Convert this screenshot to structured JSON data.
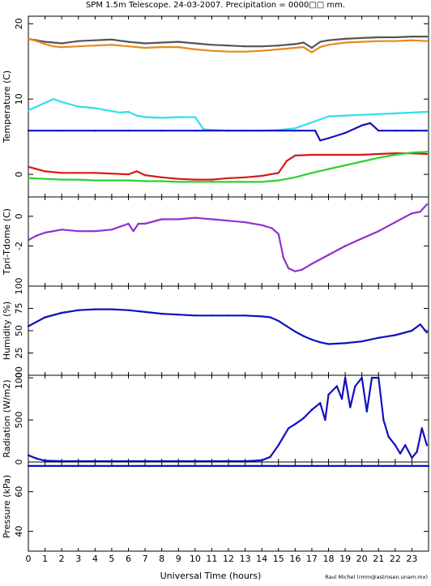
{
  "title": "SPM 1.5m Telescope. 24-03-2007. Precipitation = 0000□□ mm.",
  "xlabel": "Universal Time (hours)",
  "credit": "Raul Michel (rmm@astrosen.unam.mx)",
  "x_ticks": [
    "0",
    "1",
    "2",
    "3",
    "4",
    "5",
    "6",
    "7",
    "8",
    "9",
    "10",
    "11",
    "12",
    "13",
    "14",
    "15",
    "16",
    "17",
    "18",
    "19",
    "20",
    "21",
    "22",
    "23"
  ],
  "panels": [
    {
      "ylabel": "Temperature (C)",
      "ticks": [
        "0",
        "10",
        "20"
      ]
    },
    {
      "ylabel": "Tpri-Tdome (C)",
      "ticks": [
        "-2",
        "0"
      ]
    },
    {
      "ylabel": "Humidity (%)",
      "ticks": [
        "0",
        "25",
        "50",
        "75",
        "100"
      ]
    },
    {
      "ylabel": "Radiation (W/m2)",
      "ticks": [
        "0",
        "500",
        "1000"
      ]
    },
    {
      "ylabel": "Pressure (kPa)",
      "ticks": [
        "40",
        "60"
      ]
    }
  ],
  "colors": {
    "dark_gray": "#555555",
    "orange": "#e88a1a",
    "cyan": "#30e0e8",
    "blue": "#1010c0",
    "red": "#d81818",
    "green": "#30d030",
    "purple": "#9030d0"
  },
  "chart_data": [
    {
      "type": "line",
      "title": "",
      "xlabel": "Universal Time (hours)",
      "ylabel": "Temperature (C)",
      "xlim": [
        0,
        24
      ],
      "ylim": [
        -3,
        21
      ],
      "grid": false,
      "series": [
        {
          "color": "#555555",
          "x": [
            0,
            0.5,
            1,
            1.5,
            2,
            3,
            4,
            5,
            6,
            7,
            8,
            9,
            10,
            11,
            12,
            13,
            14,
            15,
            16,
            16.5,
            17,
            17.5,
            18,
            19,
            20,
            21,
            22,
            23,
            23.9
          ],
          "y": [
            18,
            17.8,
            17.6,
            17.5,
            17.4,
            17.7,
            17.8,
            17.9,
            17.6,
            17.4,
            17.5,
            17.6,
            17.4,
            17.2,
            17.1,
            17.0,
            17.0,
            17.1,
            17.3,
            17.5,
            16.8,
            17.6,
            17.8,
            18.0,
            18.1,
            18.2,
            18.2,
            18.3,
            18.3
          ]
        },
        {
          "color": "#e88a1a",
          "x": [
            0,
            0.5,
            1,
            1.5,
            2,
            3,
            4,
            5,
            6,
            7,
            8,
            9,
            10,
            11,
            12,
            13,
            14,
            15,
            16,
            16.5,
            17,
            17.5,
            18,
            19,
            20,
            21,
            22,
            23,
            23.9
          ],
          "y": [
            18,
            17.7,
            17.3,
            17.0,
            16.9,
            17.0,
            17.1,
            17.2,
            17.0,
            16.8,
            16.9,
            16.9,
            16.6,
            16.4,
            16.3,
            16.3,
            16.4,
            16.6,
            16.8,
            16.9,
            16.2,
            16.9,
            17.2,
            17.5,
            17.6,
            17.7,
            17.7,
            17.8,
            17.7
          ]
        },
        {
          "color": "#30e0e8",
          "x": [
            0,
            0.5,
            1,
            1.5,
            2,
            3,
            4,
            5,
            5.5,
            6,
            6.5,
            7,
            8,
            9,
            10,
            10.5,
            11,
            12,
            13,
            14,
            15,
            16,
            17,
            18,
            19,
            20,
            21,
            22,
            23,
            23.9
          ],
          "y": [
            8.5,
            9,
            9.5,
            10,
            9.6,
            9,
            8.8,
            8.4,
            8.2,
            8.3,
            7.8,
            7.6,
            7.5,
            7.6,
            7.6,
            6.0,
            5.9,
            5.8,
            5.8,
            5.8,
            5.9,
            6.1,
            6.9,
            7.7,
            7.8,
            7.9,
            8.0,
            8.1,
            8.2,
            8.3
          ]
        },
        {
          "color": "#1010c0",
          "x": [
            0,
            2,
            4,
            6,
            8,
            10,
            12,
            14,
            16,
            17.2,
            17.5,
            18,
            19,
            20,
            20.5,
            21,
            22,
            23,
            23.9
          ],
          "y": [
            5.8,
            5.8,
            5.8,
            5.8,
            5.8,
            5.8,
            5.8,
            5.8,
            5.8,
            5.8,
            4.5,
            4.8,
            5.5,
            6.5,
            6.8,
            5.8,
            5.8,
            5.8,
            5.8
          ]
        },
        {
          "color": "#d81818",
          "x": [
            0,
            0.5,
            1,
            2,
            3,
            4,
            5,
            6,
            6.5,
            7,
            8,
            9,
            10,
            11,
            12,
            13,
            14,
            15,
            15.5,
            16,
            17,
            18,
            19,
            20,
            21,
            22,
            23,
            23.9
          ],
          "y": [
            1,
            0.7,
            0.4,
            0.2,
            0.2,
            0.2,
            0.1,
            0.0,
            0.4,
            -0.1,
            -0.4,
            -0.6,
            -0.7,
            -0.7,
            -0.5,
            -0.4,
            -0.2,
            0.2,
            1.8,
            2.5,
            2.6,
            2.6,
            2.6,
            2.6,
            2.7,
            2.8,
            2.8,
            2.7
          ]
        },
        {
          "color": "#30d030",
          "x": [
            0,
            1,
            2,
            3,
            4,
            5,
            6,
            7,
            8,
            9,
            10,
            11,
            12,
            13,
            14,
            15,
            16,
            17,
            18,
            19,
            20,
            21,
            22,
            23,
            23.9
          ],
          "y": [
            -0.5,
            -0.6,
            -0.7,
            -0.7,
            -0.8,
            -0.8,
            -0.8,
            -0.9,
            -0.9,
            -1.0,
            -1.0,
            -1.0,
            -1.0,
            -1.0,
            -1.0,
            -0.8,
            -0.4,
            0.2,
            0.7,
            1.2,
            1.7,
            2.2,
            2.6,
            2.9,
            3.0
          ]
        }
      ]
    },
    {
      "type": "line",
      "title": "",
      "xlabel": "Universal Time (hours)",
      "ylabel": "Tpri-Tdome (C)",
      "xlim": [
        0,
        24
      ],
      "ylim": [
        -4.7,
        1.3
      ],
      "grid": false,
      "series": [
        {
          "color": "#9030d0",
          "x": [
            0,
            0.5,
            1,
            2,
            3,
            4,
            5,
            6,
            6.3,
            6.6,
            7,
            8,
            9,
            10,
            11,
            12,
            13,
            14,
            14.6,
            15,
            15.3,
            15.6,
            16,
            16.4,
            17,
            18,
            19,
            20,
            21,
            22,
            23,
            23.5,
            23.9
          ],
          "y": [
            -1.6,
            -1.3,
            -1.1,
            -0.9,
            -1.0,
            -1.0,
            -0.9,
            -0.5,
            -1.0,
            -0.5,
            -0.5,
            -0.2,
            -0.2,
            -0.1,
            -0.2,
            -0.3,
            -0.4,
            -0.6,
            -0.8,
            -1.2,
            -2.8,
            -3.5,
            -3.7,
            -3.6,
            -3.2,
            -2.6,
            -2.0,
            -1.5,
            -1.0,
            -0.4,
            0.2,
            0.3,
            0.8
          ]
        }
      ]
    },
    {
      "type": "line",
      "title": "",
      "xlabel": "Universal Time (hours)",
      "ylabel": "Humidity (%)",
      "xlim": [
        0,
        24
      ],
      "ylim": [
        0,
        100
      ],
      "grid": false,
      "series": [
        {
          "color": "#1010c0",
          "x": [
            0,
            0.5,
            1,
            2,
            3,
            4,
            5,
            6,
            7,
            8,
            9,
            10,
            11,
            12,
            13,
            14,
            14.5,
            15,
            15.5,
            16,
            16.5,
            17,
            17.5,
            18,
            19,
            20,
            21,
            22,
            23,
            23.5,
            23.9
          ],
          "y": [
            55,
            60,
            65,
            70,
            73,
            74,
            74,
            73,
            71,
            69,
            68,
            67,
            67,
            67,
            67,
            66,
            65,
            61,
            55,
            49,
            44,
            40,
            37,
            35,
            36,
            38,
            42,
            45,
            50,
            57,
            48
          ]
        }
      ]
    },
    {
      "type": "line",
      "title": "",
      "xlabel": "Universal Time (hours)",
      "ylabel": "Radiation (W/m2)",
      "xlim": [
        0,
        24
      ],
      "ylim": [
        0,
        1030
      ],
      "grid": false,
      "series": [
        {
          "color": "#1010c0",
          "x": [
            0,
            0.5,
            1,
            2,
            3,
            4,
            5,
            6,
            7,
            8,
            9,
            10,
            11,
            12,
            13,
            14,
            14.5,
            15,
            15.3,
            15.6,
            16,
            16.5,
            17,
            17.5,
            17.8,
            18,
            18.5,
            18.8,
            19,
            19.3,
            19.6,
            20,
            20.3,
            20.6,
            21,
            21.3,
            21.6,
            22,
            22.3,
            22.6,
            23,
            23.3,
            23.6,
            23.9
          ],
          "y": [
            80,
            40,
            15,
            10,
            10,
            10,
            10,
            10,
            10,
            10,
            10,
            10,
            10,
            10,
            10,
            20,
            60,
            200,
            300,
            400,
            450,
            520,
            620,
            700,
            500,
            800,
            900,
            750,
            1000,
            650,
            900,
            1000,
            600,
            1000,
            1000,
            500,
            300,
            200,
            100,
            200,
            50,
            120,
            400,
            200
          ]
        }
      ]
    },
    {
      "type": "line",
      "title": "",
      "xlabel": "Universal Time (hours)",
      "ylabel": "Pressure (kPa)",
      "xlim": [
        0,
        24
      ],
      "ylim": [
        30,
        75
      ],
      "grid": false,
      "series": [
        {
          "color": "#1010c0",
          "x": [
            0,
            24
          ],
          "y": [
            73,
            73
          ]
        }
      ]
    }
  ]
}
